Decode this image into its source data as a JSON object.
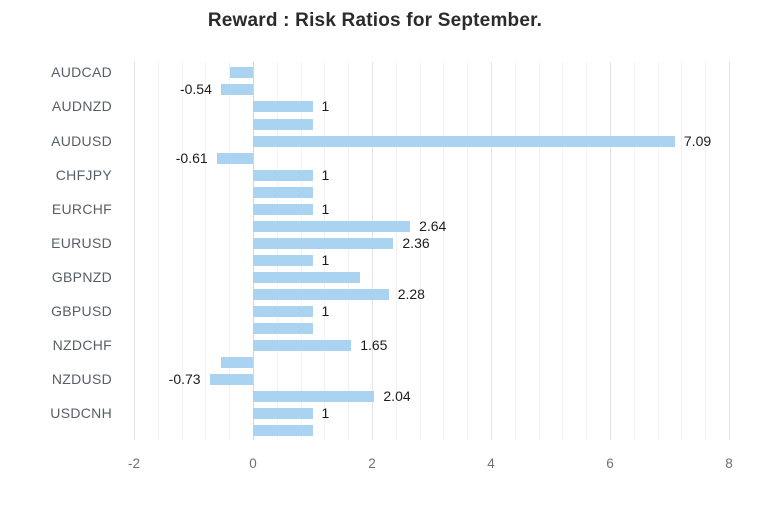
{
  "chart_data": {
    "type": "bar",
    "orientation": "horizontal",
    "title": "Reward : Risk Ratios for September.",
    "xlabel": "",
    "ylabel": "",
    "xlim": [
      -2,
      8.2
    ],
    "x_ticks": [
      "-2",
      "0",
      "2",
      "4",
      "6",
      "8"
    ],
    "minor_grid_step": 0.4,
    "major_grid_step": 2,
    "legend": "none",
    "grid": "vertical",
    "rows": [
      {
        "category": "AUDCAD",
        "bars": [
          {
            "value": -0.38,
            "label": ""
          },
          {
            "value": -0.54,
            "label": "-0.54"
          }
        ]
      },
      {
        "category": "AUDNZD",
        "bars": [
          {
            "value": 1,
            "label": "1"
          },
          {
            "value": 1,
            "label": ""
          }
        ]
      },
      {
        "category": "AUDUSD",
        "bars": [
          {
            "value": 7.09,
            "label": "7.09"
          },
          {
            "value": -0.61,
            "label": "-0.61"
          }
        ]
      },
      {
        "category": "CHFJPY",
        "bars": [
          {
            "value": 1,
            "label": "1"
          },
          {
            "value": 1,
            "label": ""
          }
        ]
      },
      {
        "category": "EURCHF",
        "bars": [
          {
            "value": 1,
            "label": "1"
          },
          {
            "value": 2.64,
            "label": "2.64"
          }
        ]
      },
      {
        "category": "EURUSD",
        "bars": [
          {
            "value": 2.36,
            "label": "2.36"
          },
          {
            "value": 1,
            "label": "1"
          }
        ]
      },
      {
        "category": "GBPNZD",
        "bars": [
          {
            "value": 1.8,
            "label": ""
          },
          {
            "value": 2.28,
            "label": "2.28"
          }
        ]
      },
      {
        "category": "GBPUSD",
        "bars": [
          {
            "value": 1,
            "label": "1"
          },
          {
            "value": 1,
            "label": ""
          }
        ]
      },
      {
        "category": "NZDCHF",
        "bars": [
          {
            "value": 1.65,
            "label": "1.65"
          },
          {
            "value": -0.54,
            "label": ""
          }
        ]
      },
      {
        "category": "NZDUSD",
        "bars": [
          {
            "value": -0.73,
            "label": "-0.73"
          },
          {
            "value": 2.04,
            "label": "2.04"
          }
        ]
      },
      {
        "category": "USDCNH",
        "bars": [
          {
            "value": 1,
            "label": "1"
          },
          {
            "value": 1,
            "label": ""
          }
        ]
      }
    ]
  },
  "colors": {
    "bar": "#a9d3f1",
    "grid_minor": "#f2f2f2",
    "grid_major": "#e3e3e3",
    "zero_line": "#d6d6d6",
    "title": "#2b2b2b",
    "category_label": "#575f66",
    "value_label": "#1d1d1d",
    "axis_tick": "#6b7177",
    "background": "#ffffff"
  }
}
